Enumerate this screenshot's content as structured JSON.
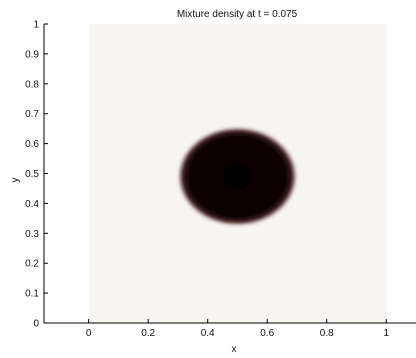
{
  "chart_data": {
    "type": "heatmap",
    "title": "Mixture density at t = 0.075",
    "xlabel": "x",
    "ylabel": "y",
    "xlim": [
      -0.15,
      1.1
    ],
    "ylim": [
      0,
      1
    ],
    "domain": {
      "x": [
        0,
        1
      ],
      "y": [
        0,
        1
      ]
    },
    "xticks": [
      0,
      0.2,
      0.4,
      0.6,
      0.8,
      1
    ],
    "xtick_labels": [
      "0",
      "0.2",
      "0.4",
      "0.6",
      "0.8",
      "1"
    ],
    "yticks": [
      0,
      0.1,
      0.2,
      0.3,
      0.4,
      0.5,
      0.6,
      0.7,
      0.8,
      0.9,
      1
    ],
    "ytick_labels": [
      "0",
      "0.1",
      "0.2",
      "0.3",
      "0.4",
      "0.5",
      "0.6",
      "0.7",
      "0.8",
      "0.9",
      "1"
    ],
    "colormap": "light-cream to dark-brown/black (low to high density)",
    "colors": {
      "background": "#f6f5ef",
      "blob": "#0a0505",
      "blob_edge": "#6e3232"
    },
    "blob": {
      "shape": "ellipse",
      "center": [
        0.5,
        0.49
      ],
      "radius_x": 0.2,
      "radius_y": 0.165,
      "value": "high"
    },
    "grid": false,
    "legend": "none"
  }
}
